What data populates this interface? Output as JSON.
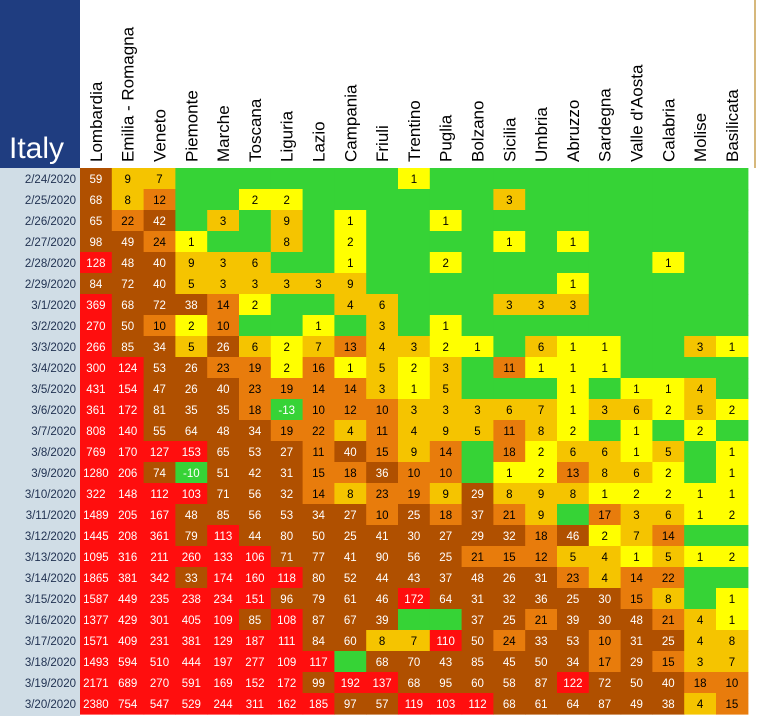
{
  "title": "Italy",
  "colors": {
    "title_bg": "#1f3d80",
    "date_col_bg": "#d0dde6",
    "header_bg": "#ffffff",
    "header_accent": "#c8a050",
    "zero": "#36d336",
    "low": "#ffff00",
    "mid_low": "#f5c400",
    "mid": "#e87c0c",
    "high": "#b05000",
    "top": "#ff0e0e",
    "negative": "#36d336"
  },
  "chart_data": {
    "type": "heatmap",
    "title": "Italy",
    "columns": [
      "Lombardia",
      "Emilia - Romagna",
      "Veneto",
      "Piemonte",
      "Marche",
      "Toscana",
      "Liguria",
      "Lazio",
      "Campania",
      "Friuli",
      "Trentino",
      "Puglia",
      "Bolzano",
      "Sicilia",
      "Umbria",
      "Abruzzo",
      "Sardegna",
      "Valle d'Aosta",
      "Calabria",
      "Molise",
      "Basilicata"
    ],
    "rows": [
      "2/24/2020",
      "2/25/2020",
      "2/26/2020",
      "2/27/2020",
      "2/28/2020",
      "2/29/2020",
      "3/1/2020",
      "3/2/2020",
      "3/3/2020",
      "3/4/2020",
      "3/5/2020",
      "3/6/2020",
      "3/7/2020",
      "3/8/2020",
      "3/9/2020",
      "3/10/2020",
      "3/11/2020",
      "3/12/2020",
      "3/13/2020",
      "3/14/2020",
      "3/15/2020",
      "3/16/2020",
      "3/17/2020",
      "3/18/2020",
      "3/19/2020",
      "3/20/2020"
    ],
    "values": [
      [
        59,
        9,
        7,
        null,
        null,
        null,
        null,
        null,
        null,
        null,
        1,
        null,
        null,
        null,
        null,
        null,
        null,
        null,
        null,
        null,
        null
      ],
      [
        68,
        8,
        12,
        null,
        null,
        2,
        2,
        null,
        null,
        null,
        null,
        null,
        null,
        3,
        null,
        null,
        null,
        null,
        null,
        null,
        null
      ],
      [
        65,
        22,
        42,
        null,
        3,
        null,
        9,
        null,
        1,
        null,
        null,
        1,
        null,
        null,
        null,
        null,
        null,
        null,
        null,
        null,
        null
      ],
      [
        98,
        49,
        24,
        1,
        null,
        null,
        8,
        null,
        2,
        null,
        null,
        null,
        null,
        1,
        null,
        1,
        null,
        null,
        null,
        null,
        null
      ],
      [
        128,
        48,
        40,
        9,
        3,
        6,
        null,
        null,
        1,
        null,
        null,
        2,
        null,
        null,
        null,
        null,
        null,
        null,
        1,
        null,
        null
      ],
      [
        84,
        72,
        40,
        5,
        3,
        3,
        3,
        3,
        9,
        null,
        null,
        null,
        null,
        null,
        null,
        1,
        null,
        null,
        null,
        null,
        null
      ],
      [
        369,
        68,
        72,
        38,
        14,
        2,
        null,
        null,
        4,
        6,
        null,
        null,
        null,
        3,
        3,
        3,
        null,
        null,
        null,
        null,
        null
      ],
      [
        270,
        50,
        10,
        2,
        10,
        null,
        null,
        1,
        null,
        3,
        null,
        1,
        null,
        null,
        null,
        null,
        null,
        null,
        null,
        null,
        null
      ],
      [
        266,
        85,
        34,
        5,
        26,
        6,
        2,
        7,
        13,
        4,
        3,
        2,
        1,
        null,
        6,
        1,
        1,
        null,
        null,
        3,
        1
      ],
      [
        300,
        124,
        53,
        26,
        23,
        19,
        2,
        16,
        1,
        5,
        2,
        3,
        null,
        11,
        1,
        1,
        1,
        null,
        null,
        null,
        null
      ],
      [
        431,
        154,
        47,
        26,
        40,
        23,
        19,
        14,
        14,
        3,
        1,
        5,
        null,
        null,
        null,
        1,
        null,
        1,
        1,
        4,
        null
      ],
      [
        361,
        172,
        81,
        35,
        35,
        18,
        -13,
        10,
        12,
        10,
        3,
        3,
        3,
        6,
        7,
        1,
        3,
        6,
        2,
        5,
        2
      ],
      [
        808,
        140,
        55,
        64,
        48,
        34,
        19,
        22,
        4,
        11,
        4,
        9,
        5,
        11,
        8,
        2,
        null,
        1,
        null,
        2,
        null
      ],
      [
        769,
        170,
        127,
        153,
        65,
        53,
        27,
        11,
        40,
        15,
        9,
        14,
        null,
        18,
        2,
        6,
        6,
        1,
        5,
        null,
        1
      ],
      [
        1280,
        206,
        74,
        -10,
        51,
        42,
        31,
        15,
        18,
        36,
        10,
        10,
        null,
        1,
        2,
        13,
        8,
        6,
        2,
        null,
        1
      ],
      [
        322,
        148,
        112,
        103,
        71,
        56,
        32,
        14,
        8,
        23,
        19,
        9,
        29,
        8,
        9,
        8,
        1,
        2,
        2,
        1,
        1
      ],
      [
        1489,
        205,
        167,
        48,
        85,
        56,
        53,
        34,
        27,
        10,
        25,
        18,
        37,
        21,
        9,
        null,
        17,
        3,
        6,
        1,
        2
      ],
      [
        1445,
        208,
        361,
        79,
        113,
        44,
        80,
        50,
        25,
        41,
        30,
        27,
        29,
        32,
        18,
        46,
        2,
        7,
        14,
        null,
        null
      ],
      [
        1095,
        316,
        211,
        260,
        133,
        106,
        71,
        77,
        41,
        90,
        56,
        25,
        21,
        15,
        12,
        5,
        4,
        1,
        5,
        1,
        2
      ],
      [
        1865,
        381,
        342,
        33,
        174,
        160,
        118,
        80,
        52,
        44,
        43,
        37,
        48,
        26,
        31,
        23,
        4,
        14,
        22,
        null,
        null
      ],
      [
        1587,
        449,
        235,
        238,
        234,
        151,
        96,
        79,
        61,
        46,
        172,
        64,
        31,
        32,
        36,
        25,
        30,
        15,
        8,
        null,
        1
      ],
      [
        1377,
        429,
        301,
        405,
        109,
        85,
        108,
        87,
        67,
        39,
        null,
        null,
        37,
        25,
        21,
        39,
        30,
        48,
        21,
        4,
        1
      ],
      [
        1571,
        409,
        231,
        381,
        129,
        187,
        111,
        84,
        60,
        8,
        7,
        110,
        50,
        24,
        33,
        53,
        10,
        31,
        25,
        4,
        8
      ],
      [
        1493,
        594,
        510,
        444,
        197,
        277,
        109,
        117,
        null,
        68,
        70,
        43,
        85,
        45,
        50,
        34,
        17,
        29,
        15,
        3,
        7
      ],
      [
        2171,
        689,
        270,
        591,
        169,
        152,
        172,
        99,
        192,
        137,
        68,
        95,
        60,
        58,
        87,
        122,
        72,
        50,
        40,
        18,
        10
      ],
      [
        2380,
        754,
        547,
        529,
        244,
        311,
        162,
        185,
        97,
        57,
        119,
        103,
        112,
        68,
        61,
        64,
        87,
        49,
        38,
        4,
        15
      ]
    ]
  }
}
